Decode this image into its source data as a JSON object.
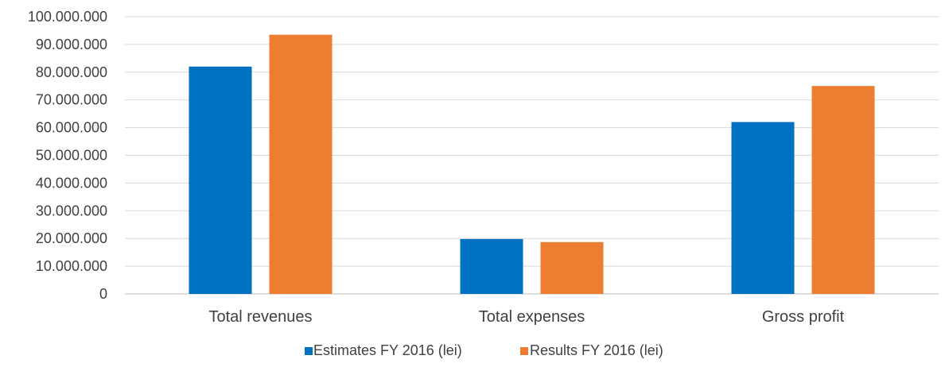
{
  "chart_data": {
    "type": "bar",
    "categories": [
      "Total revenues",
      "Total expenses",
      "Gross profit"
    ],
    "series": [
      {
        "name": "Estimates FY 2016 (lei)",
        "color": "#0070c0",
        "values": [
          82000000,
          19800000,
          62000000
        ]
      },
      {
        "name": "Results FY 2016 (lei)",
        "color": "#ed7d31",
        "values": [
          93500000,
          18700000,
          75000000
        ]
      }
    ],
    "ylim": [
      0,
      100000000
    ],
    "ytick_labels": [
      "0",
      "10.000.000",
      "20.000.000",
      "30.000.000",
      "40.000.000",
      "50.000.000",
      "60.000.000",
      "70.000.000",
      "80.000.000",
      "90.000.000",
      "100.000.000"
    ],
    "grid": true,
    "legend_position": "bottom"
  }
}
